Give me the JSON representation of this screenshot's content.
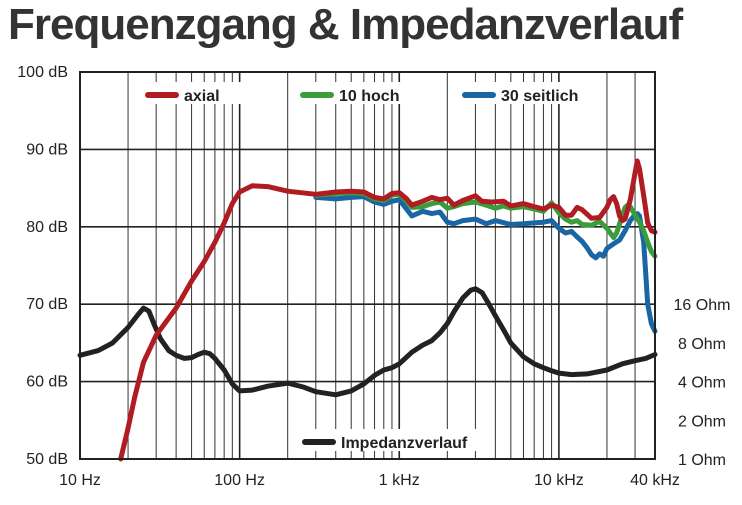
{
  "chart_data": {
    "type": "line",
    "title": "Frequenzgang & Impedanzverlauf",
    "xlabel": "",
    "ylabel": "",
    "x_scale": "log",
    "xlim": [
      10,
      40000
    ],
    "ylim": [
      50,
      100
    ],
    "grid": true,
    "legend_position": "top",
    "x_ticks": [
      {
        "value": 10,
        "label": "10 Hz"
      },
      {
        "value": 100,
        "label": "100 Hz"
      },
      {
        "value": 1000,
        "label": "1 kHz"
      },
      {
        "value": 10000,
        "label": "10 kHz"
      },
      {
        "value": 40000,
        "label": "40 kHz"
      }
    ],
    "y_ticks": [
      {
        "value": 100,
        "label": "100 dB"
      },
      {
        "value": 90,
        "label": "90 dB"
      },
      {
        "value": 80,
        "label": "80 dB"
      },
      {
        "value": 70,
        "label": "70 dB"
      },
      {
        "value": 60,
        "label": "60 dB"
      },
      {
        "value": 50,
        "label": "50 dB"
      }
    ],
    "y2_ticks": [
      {
        "value": 70,
        "label": "16 Ohm"
      },
      {
        "value": 65,
        "label": "8 Ohm"
      },
      {
        "value": 60,
        "label": "4 Ohm"
      },
      {
        "value": 55,
        "label": "2 Ohm"
      },
      {
        "value": 50,
        "label": "1 Ohm"
      }
    ],
    "series": [
      {
        "name": "axial",
        "color": "#b01c22",
        "points": [
          [
            18,
            50
          ],
          [
            20,
            54
          ],
          [
            22,
            58
          ],
          [
            25,
            62.5
          ],
          [
            30,
            66
          ],
          [
            40,
            69.5
          ],
          [
            50,
            73
          ],
          [
            60,
            75.5
          ],
          [
            70,
            78
          ],
          [
            80,
            80.5
          ],
          [
            90,
            83
          ],
          [
            100,
            84.5
          ],
          [
            120,
            85.3
          ],
          [
            150,
            85.2
          ],
          [
            200,
            84.6
          ],
          [
            300,
            84.2
          ],
          [
            400,
            84.5
          ],
          [
            500,
            84.6
          ],
          [
            600,
            84.5
          ],
          [
            700,
            83.8
          ],
          [
            800,
            83.6
          ],
          [
            900,
            84.3
          ],
          [
            1000,
            84.4
          ],
          [
            1100,
            83.7
          ],
          [
            1200,
            82.8
          ],
          [
            1400,
            83.3
          ],
          [
            1600,
            83.8
          ],
          [
            1800,
            83.5
          ],
          [
            2000,
            83.7
          ],
          [
            2200,
            82.8
          ],
          [
            2500,
            83.4
          ],
          [
            3000,
            84
          ],
          [
            3300,
            83.3
          ],
          [
            3800,
            83.2
          ],
          [
            4500,
            83.3
          ],
          [
            5000,
            82.7
          ],
          [
            6000,
            83
          ],
          [
            7000,
            82.6
          ],
          [
            8000,
            82.3
          ],
          [
            9000,
            82.8
          ],
          [
            10000,
            82.5
          ],
          [
            11000,
            81.5
          ],
          [
            12000,
            81.5
          ],
          [
            13000,
            82.5
          ],
          [
            14000,
            82.2
          ],
          [
            16000,
            81.1
          ],
          [
            18000,
            81.2
          ],
          [
            20000,
            82.5
          ],
          [
            21000,
            83.5
          ],
          [
            22000,
            83.9
          ],
          [
            23000,
            83
          ],
          [
            24000,
            81.4
          ],
          [
            25000,
            80.8
          ],
          [
            26000,
            81
          ],
          [
            28000,
            83.5
          ],
          [
            30000,
            87
          ],
          [
            31000,
            88.5
          ],
          [
            32000,
            87.5
          ],
          [
            34000,
            84
          ],
          [
            36000,
            80.5
          ],
          [
            38000,
            79.5
          ],
          [
            40000,
            79.3
          ]
        ]
      },
      {
        "name": "10  hoch",
        "color": "#3a9c3a",
        "points": [
          [
            300,
            84.1
          ],
          [
            400,
            84.3
          ],
          [
            500,
            84.4
          ],
          [
            600,
            84.3
          ],
          [
            700,
            83.6
          ],
          [
            800,
            83.4
          ],
          [
            900,
            84.1
          ],
          [
            1000,
            84.2
          ],
          [
            1100,
            83.4
          ],
          [
            1200,
            82.5
          ],
          [
            1400,
            82.6
          ],
          [
            1600,
            83
          ],
          [
            1800,
            83.2
          ],
          [
            2000,
            82.4
          ],
          [
            2200,
            82.6
          ],
          [
            2500,
            83
          ],
          [
            3000,
            83.2
          ],
          [
            3500,
            82.8
          ],
          [
            4000,
            82.4
          ],
          [
            4500,
            82.7
          ],
          [
            5000,
            82.4
          ],
          [
            6000,
            82.6
          ],
          [
            7000,
            82.3
          ],
          [
            8000,
            82
          ],
          [
            9000,
            83.1
          ],
          [
            10000,
            81.8
          ],
          [
            11000,
            81
          ],
          [
            12000,
            80.6
          ],
          [
            13000,
            80.8
          ],
          [
            14000,
            80.3
          ],
          [
            16000,
            80.2
          ],
          [
            18000,
            80.7
          ],
          [
            20000,
            79.8
          ],
          [
            22000,
            78.6
          ],
          [
            23000,
            79.2
          ],
          [
            25000,
            81.5
          ],
          [
            26000,
            82.5
          ],
          [
            27000,
            82.8
          ],
          [
            28000,
            82.6
          ],
          [
            30000,
            81.5
          ],
          [
            32000,
            80.6
          ],
          [
            34000,
            79.5
          ],
          [
            36000,
            78
          ],
          [
            38000,
            76.8
          ],
          [
            40000,
            76.2
          ]
        ]
      },
      {
        "name": "30  seitlich",
        "color": "#1a65a3",
        "points": [
          [
            300,
            83.8
          ],
          [
            400,
            83.6
          ],
          [
            500,
            83.8
          ],
          [
            600,
            83.9
          ],
          [
            700,
            83.2
          ],
          [
            800,
            82.9
          ],
          [
            900,
            83.3
          ],
          [
            1000,
            83.5
          ],
          [
            1100,
            82.4
          ],
          [
            1200,
            81.4
          ],
          [
            1400,
            82
          ],
          [
            1600,
            81.7
          ],
          [
            1800,
            81.9
          ],
          [
            2000,
            80.6
          ],
          [
            2200,
            80.4
          ],
          [
            2500,
            80.8
          ],
          [
            3000,
            81
          ],
          [
            3500,
            80.4
          ],
          [
            4000,
            80.8
          ],
          [
            5000,
            80.3
          ],
          [
            6000,
            80.4
          ],
          [
            7000,
            80.5
          ],
          [
            8000,
            80.6
          ],
          [
            9000,
            80.8
          ],
          [
            10000,
            79.8
          ],
          [
            11000,
            79.2
          ],
          [
            12000,
            79.4
          ],
          [
            13000,
            78.7
          ],
          [
            14000,
            78.1
          ],
          [
            15000,
            77.3
          ],
          [
            16000,
            76.4
          ],
          [
            17000,
            76
          ],
          [
            18000,
            76.5
          ],
          [
            19000,
            76.2
          ],
          [
            20000,
            77.2
          ],
          [
            22000,
            77.8
          ],
          [
            24000,
            78.3
          ],
          [
            26000,
            79.5
          ],
          [
            28000,
            80.8
          ],
          [
            30000,
            81.6
          ],
          [
            31000,
            81.7
          ],
          [
            32000,
            81.4
          ],
          [
            34000,
            78
          ],
          [
            35000,
            74
          ],
          [
            36000,
            70
          ],
          [
            38000,
            67.5
          ],
          [
            40000,
            66.5
          ]
        ]
      },
      {
        "name": "Impedanzverlauf",
        "color": "#222222",
        "points": [
          [
            10,
            63.4
          ],
          [
            13,
            64
          ],
          [
            16,
            65
          ],
          [
            20,
            67
          ],
          [
            23,
            68.6
          ],
          [
            25,
            69.5
          ],
          [
            27,
            69.1
          ],
          [
            29,
            67.5
          ],
          [
            32,
            65.5
          ],
          [
            36,
            64
          ],
          [
            40,
            63.4
          ],
          [
            45,
            63
          ],
          [
            50,
            63.1
          ],
          [
            55,
            63.5
          ],
          [
            60,
            63.8
          ],
          [
            65,
            63.6
          ],
          [
            70,
            63
          ],
          [
            80,
            61.5
          ],
          [
            90,
            59.7
          ],
          [
            100,
            58.8
          ],
          [
            120,
            58.9
          ],
          [
            150,
            59.4
          ],
          [
            200,
            59.8
          ],
          [
            250,
            59.3
          ],
          [
            300,
            58.7
          ],
          [
            400,
            58.3
          ],
          [
            500,
            58.8
          ],
          [
            600,
            59.7
          ],
          [
            700,
            60.8
          ],
          [
            800,
            61.5
          ],
          [
            900,
            61.8
          ],
          [
            1000,
            62.3
          ],
          [
            1200,
            63.8
          ],
          [
            1400,
            64.7
          ],
          [
            1600,
            65.3
          ],
          [
            1800,
            66.3
          ],
          [
            2000,
            67.5
          ],
          [
            2200,
            69
          ],
          [
            2500,
            70.8
          ],
          [
            2800,
            71.8
          ],
          [
            3000,
            72
          ],
          [
            3300,
            71.5
          ],
          [
            3600,
            70.2
          ],
          [
            4000,
            68.5
          ],
          [
            4500,
            66.7
          ],
          [
            5000,
            65
          ],
          [
            6000,
            63.2
          ],
          [
            7000,
            62.3
          ],
          [
            8000,
            61.8
          ],
          [
            9000,
            61.4
          ],
          [
            10000,
            61.1
          ],
          [
            12000,
            60.9
          ],
          [
            15000,
            61
          ],
          [
            18000,
            61.3
          ],
          [
            20000,
            61.5
          ],
          [
            25000,
            62.3
          ],
          [
            30000,
            62.7
          ],
          [
            35000,
            63
          ],
          [
            40000,
            63.5
          ]
        ]
      }
    ]
  }
}
